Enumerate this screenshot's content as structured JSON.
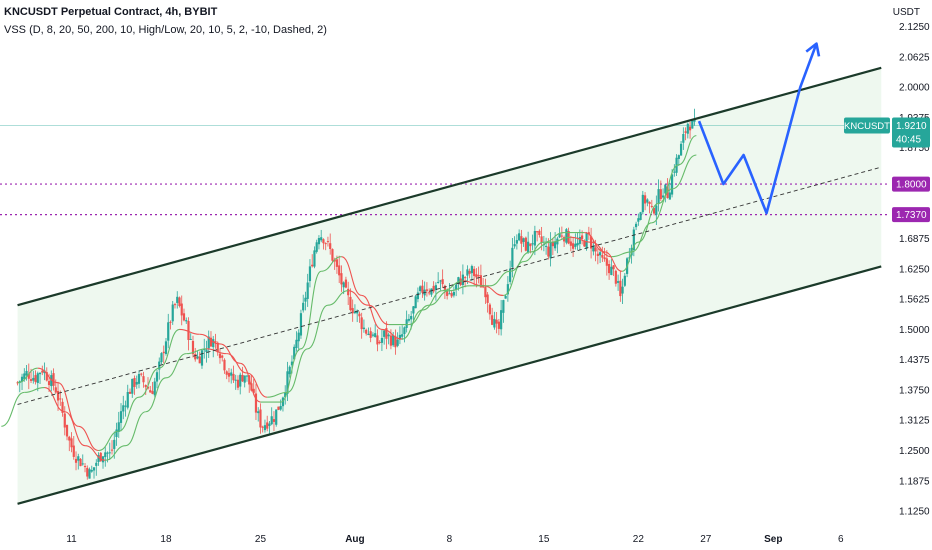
{
  "header": {
    "title": "KNCUSDT Perpetual Contract, 4h, BYBIT",
    "indicator": "VSS (D, 8, 20, 50, 200, 10, High/Low, 20, 10, 5, 2, -10, Dashed, 2)"
  },
  "price_axis": {
    "unit": "USDT",
    "ticks": [
      "2.1250",
      "2.0625",
      "2.0000",
      "1.9375",
      "1.8750",
      "1.6875",
      "1.6250",
      "1.5625",
      "1.5000",
      "1.4375",
      "1.3750",
      "1.3125",
      "1.2500",
      "1.1875",
      "1.1250"
    ]
  },
  "time_axis": {
    "ticks": [
      {
        "label": "11",
        "bold": false
      },
      {
        "label": "18",
        "bold": false
      },
      {
        "label": "25",
        "bold": false
      },
      {
        "label": "Aug",
        "bold": true
      },
      {
        "label": "8",
        "bold": false
      },
      {
        "label": "15",
        "bold": false
      },
      {
        "label": "22",
        "bold": false
      },
      {
        "label": "27",
        "bold": false
      },
      {
        "label": "Sep",
        "bold": true
      },
      {
        "label": "6",
        "bold": false
      }
    ]
  },
  "badges": {
    "symbol": "KNCUSDT",
    "price": "1.9210",
    "countdown": "40:45",
    "level1": "1.8000",
    "level2": "1.7370"
  },
  "colors": {
    "up": "#26a69a",
    "down": "#ef5350",
    "channel": "#1b3a2a",
    "channel_fill": "#e8f5e9",
    "projection": "#2962ff",
    "level": "#9c27b0",
    "ema_up": "#66bb6a",
    "ema_down": "#ef5350"
  },
  "chart_data": {
    "type": "candlestick",
    "symbol": "KNCUSDT",
    "timeframe": "4h",
    "exchange": "BYBIT",
    "ylim": [
      1.09,
      2.18
    ],
    "y_ticks": [
      1.125,
      1.1875,
      1.25,
      1.3125,
      1.375,
      1.4375,
      1.5,
      1.5625,
      1.625,
      1.6875,
      1.875,
      1.9375,
      2.0,
      2.0625,
      2.125
    ],
    "x_ticks_day": [
      11,
      18,
      25,
      32,
      39,
      46,
      53,
      58,
      63,
      68
    ],
    "xlim_day": [
      5.7,
      71.5
    ],
    "close_path": [
      [
        7.0,
        1.39
      ],
      [
        7.7,
        1.41
      ],
      [
        8.3,
        1.4
      ],
      [
        8.8,
        1.42
      ],
      [
        9.3,
        1.4
      ],
      [
        9.8,
        1.38
      ],
      [
        10.3,
        1.33
      ],
      [
        10.8,
        1.27
      ],
      [
        11.3,
        1.24
      ],
      [
        11.9,
        1.22
      ],
      [
        12.4,
        1.2
      ],
      [
        12.9,
        1.23
      ],
      [
        13.4,
        1.25
      ],
      [
        13.9,
        1.24
      ],
      [
        14.4,
        1.3
      ],
      [
        14.9,
        1.35
      ],
      [
        15.4,
        1.38
      ],
      [
        15.9,
        1.4
      ],
      [
        16.4,
        1.39
      ],
      [
        16.9,
        1.37
      ],
      [
        17.4,
        1.41
      ],
      [
        17.9,
        1.47
      ],
      [
        18.4,
        1.53
      ],
      [
        18.8,
        1.56
      ],
      [
        19.2,
        1.53
      ],
      [
        19.6,
        1.5
      ],
      [
        20.0,
        1.45
      ],
      [
        20.4,
        1.44
      ],
      [
        20.8,
        1.46
      ],
      [
        21.3,
        1.48
      ],
      [
        21.8,
        1.47
      ],
      [
        22.3,
        1.43
      ],
      [
        22.8,
        1.4
      ],
      [
        23.3,
        1.39
      ],
      [
        23.8,
        1.41
      ],
      [
        24.3,
        1.38
      ],
      [
        24.7,
        1.33
      ],
      [
        25.1,
        1.3
      ],
      [
        25.5,
        1.31
      ],
      [
        26.0,
        1.32
      ],
      [
        26.5,
        1.35
      ],
      [
        27.0,
        1.4
      ],
      [
        27.5,
        1.45
      ],
      [
        28.0,
        1.52
      ],
      [
        28.4,
        1.58
      ],
      [
        28.8,
        1.64
      ],
      [
        29.3,
        1.7
      ],
      [
        29.7,
        1.69
      ],
      [
        30.2,
        1.66
      ],
      [
        30.7,
        1.62
      ],
      [
        31.2,
        1.58
      ],
      [
        31.7,
        1.55
      ],
      [
        32.2,
        1.53
      ],
      [
        32.7,
        1.5
      ],
      [
        33.2,
        1.49
      ],
      [
        33.7,
        1.47
      ],
      [
        34.2,
        1.49
      ],
      [
        34.7,
        1.48
      ],
      [
        35.2,
        1.47
      ],
      [
        35.7,
        1.5
      ],
      [
        36.2,
        1.53
      ],
      [
        36.7,
        1.57
      ],
      [
        37.2,
        1.59
      ],
      [
        37.7,
        1.58
      ],
      [
        38.2,
        1.6
      ],
      [
        38.7,
        1.58
      ],
      [
        39.2,
        1.57
      ],
      [
        39.7,
        1.6
      ],
      [
        40.2,
        1.61
      ],
      [
        40.7,
        1.62
      ],
      [
        41.2,
        1.6
      ],
      [
        41.7,
        1.58
      ],
      [
        42.2,
        1.52
      ],
      [
        42.6,
        1.49
      ],
      [
        43.0,
        1.55
      ],
      [
        43.5,
        1.63
      ],
      [
        43.9,
        1.7
      ],
      [
        44.3,
        1.68
      ],
      [
        44.8,
        1.67
      ],
      [
        45.3,
        1.69
      ],
      [
        45.8,
        1.68
      ],
      [
        46.3,
        1.66
      ],
      [
        46.8,
        1.68
      ],
      [
        47.3,
        1.7
      ],
      [
        47.8,
        1.69
      ],
      [
        48.3,
        1.67
      ],
      [
        48.8,
        1.68
      ],
      [
        49.3,
        1.69
      ],
      [
        49.8,
        1.66
      ],
      [
        50.3,
        1.64
      ],
      [
        50.8,
        1.63
      ],
      [
        51.3,
        1.61
      ],
      [
        51.7,
        1.56
      ],
      [
        52.0,
        1.62
      ],
      [
        52.4,
        1.67
      ],
      [
        52.8,
        1.72
      ],
      [
        53.2,
        1.76
      ],
      [
        53.6,
        1.77
      ],
      [
        54.0,
        1.74
      ],
      [
        54.4,
        1.77
      ],
      [
        54.8,
        1.79
      ],
      [
        55.2,
        1.78
      ],
      [
        55.6,
        1.83
      ],
      [
        56.0,
        1.86
      ],
      [
        56.4,
        1.9
      ],
      [
        56.7,
        1.93
      ],
      [
        57.0,
        1.92
      ],
      [
        57.3,
        1.921
      ]
    ],
    "ema_fast": [
      [
        7.0,
        1.39
      ],
      [
        8.5,
        1.42
      ],
      [
        10.0,
        1.39
      ],
      [
        11.5,
        1.3
      ],
      [
        13.0,
        1.25
      ],
      [
        14.5,
        1.29
      ],
      [
        16.0,
        1.36
      ],
      [
        17.5,
        1.42
      ],
      [
        19.0,
        1.5
      ],
      [
        20.5,
        1.49
      ],
      [
        22.0,
        1.47
      ],
      [
        23.5,
        1.43
      ],
      [
        25.0,
        1.35
      ],
      [
        26.5,
        1.35
      ],
      [
        28.0,
        1.46
      ],
      [
        29.5,
        1.62
      ],
      [
        31.0,
        1.65
      ],
      [
        32.5,
        1.57
      ],
      [
        34.0,
        1.5
      ],
      [
        35.5,
        1.48
      ],
      [
        37.0,
        1.54
      ],
      [
        38.5,
        1.58
      ],
      [
        40.0,
        1.6
      ],
      [
        41.5,
        1.59
      ],
      [
        43.0,
        1.57
      ],
      [
        44.5,
        1.64
      ],
      [
        46.0,
        1.68
      ],
      [
        47.5,
        1.7
      ],
      [
        49.0,
        1.7
      ],
      [
        50.5,
        1.66
      ],
      [
        51.8,
        1.62
      ],
      [
        53.0,
        1.68
      ],
      [
        54.5,
        1.76
      ],
      [
        56.0,
        1.84
      ],
      [
        57.3,
        1.9
      ]
    ],
    "ema_slow": [
      [
        5.8,
        1.3
      ],
      [
        7.5,
        1.37
      ],
      [
        9.0,
        1.38
      ],
      [
        10.5,
        1.33
      ],
      [
        12.0,
        1.26
      ],
      [
        13.5,
        1.23
      ],
      [
        15.0,
        1.26
      ],
      [
        16.5,
        1.33
      ],
      [
        18.0,
        1.4
      ],
      [
        19.5,
        1.45
      ],
      [
        21.0,
        1.46
      ],
      [
        22.5,
        1.45
      ],
      [
        24.0,
        1.41
      ],
      [
        25.5,
        1.36
      ],
      [
        27.0,
        1.37
      ],
      [
        28.5,
        1.46
      ],
      [
        30.0,
        1.55
      ],
      [
        31.5,
        1.58
      ],
      [
        33.0,
        1.55
      ],
      [
        34.5,
        1.51
      ],
      [
        36.0,
        1.51
      ],
      [
        37.5,
        1.55
      ],
      [
        39.0,
        1.58
      ],
      [
        40.5,
        1.59
      ],
      [
        42.0,
        1.59
      ],
      [
        43.5,
        1.62
      ],
      [
        45.0,
        1.66
      ],
      [
        46.5,
        1.68
      ],
      [
        48.0,
        1.69
      ],
      [
        49.5,
        1.68
      ],
      [
        51.0,
        1.65
      ],
      [
        52.5,
        1.66
      ],
      [
        54.0,
        1.72
      ],
      [
        55.5,
        1.79
      ],
      [
        57.3,
        1.86
      ]
    ],
    "channel_upper": [
      [
        7.0,
        1.55
      ],
      [
        71.0,
        2.04
      ]
    ],
    "channel_lower": [
      [
        7.0,
        1.14
      ],
      [
        71.0,
        1.63
      ]
    ],
    "channel_mid": [
      [
        7.0,
        1.345
      ],
      [
        71.0,
        1.835
      ]
    ],
    "horizontal_levels": [
      1.8,
      1.737
    ],
    "last_price": 1.921,
    "projection": [
      [
        57.5,
        1.93
      ],
      [
        59.3,
        1.8
      ],
      [
        60.8,
        1.86
      ],
      [
        62.5,
        1.74
      ],
      [
        65.0,
        2.0
      ],
      [
        66.2,
        2.09
      ]
    ]
  }
}
